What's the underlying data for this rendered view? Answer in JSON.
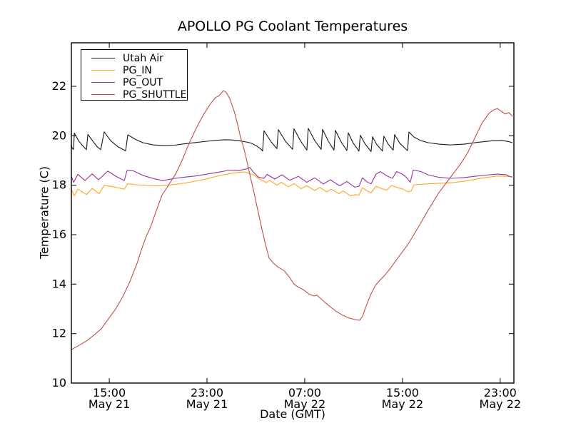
{
  "chart_data": {
    "type": "line",
    "title": "APOLLO PG Coolant Temperatures",
    "xlabel": "Date (GMT)",
    "ylabel": "Temperature (C)",
    "grid": false,
    "legend_position": "upper left",
    "x_unit": "hours since May 21 00:00 GMT",
    "xlim_hours": [
      11.9,
      48.12
    ],
    "ylim": [
      10,
      23.76
    ],
    "y_ticks": [
      10,
      12,
      14,
      16,
      18,
      20,
      22
    ],
    "x_ticks": [
      {
        "hours": 15,
        "time": "15:00",
        "date": "May 21"
      },
      {
        "hours": 23,
        "time": "23:00",
        "date": "May 21"
      },
      {
        "hours": 31,
        "time": "07:00",
        "date": "May 22"
      },
      {
        "hours": 39,
        "time": "15:00",
        "date": "May 22"
      },
      {
        "hours": 47,
        "time": "23:00",
        "date": "May 22"
      }
    ],
    "series": [
      {
        "name": "Utah Air",
        "color": "#1a1a1a",
        "points": [
          [
            11.9,
            19.63
          ],
          [
            11.96,
            19.5
          ],
          [
            12.08,
            19.45
          ],
          [
            12.14,
            20.11
          ],
          [
            12.49,
            19.8
          ],
          [
            12.78,
            19.62
          ],
          [
            13.13,
            19.44
          ],
          [
            13.25,
            20.06
          ],
          [
            13.66,
            19.78
          ],
          [
            14.01,
            19.56
          ],
          [
            14.3,
            19.44
          ],
          [
            14.59,
            20.16
          ],
          [
            15.12,
            19.8
          ],
          [
            15.7,
            19.56
          ],
          [
            16.11,
            19.45
          ],
          [
            16.34,
            19.39
          ],
          [
            16.52,
            20.04
          ],
          [
            17.16,
            19.85
          ],
          [
            17.74,
            19.72
          ],
          [
            18.62,
            19.63
          ],
          [
            19.5,
            19.6
          ],
          [
            20.37,
            19.62
          ],
          [
            21.25,
            19.68
          ],
          [
            22.12,
            19.73
          ],
          [
            23.0,
            19.78
          ],
          [
            23.88,
            19.82
          ],
          [
            24.46,
            19.84
          ],
          [
            25.04,
            19.83
          ],
          [
            25.63,
            19.8
          ],
          [
            26.21,
            19.75
          ],
          [
            26.62,
            19.7
          ],
          [
            27.09,
            19.58
          ],
          [
            27.44,
            19.45
          ],
          [
            27.55,
            19.38
          ],
          [
            27.67,
            20.2
          ],
          [
            28.26,
            19.75
          ],
          [
            28.72,
            19.48
          ],
          [
            28.84,
            20.25
          ],
          [
            29.42,
            19.78
          ],
          [
            30.01,
            19.45
          ],
          [
            30.12,
            20.28
          ],
          [
            30.65,
            19.8
          ],
          [
            31.17,
            19.42
          ],
          [
            31.29,
            20.3
          ],
          [
            31.82,
            19.8
          ],
          [
            32.34,
            19.45
          ],
          [
            32.46,
            20.26
          ],
          [
            32.93,
            19.78
          ],
          [
            33.39,
            19.42
          ],
          [
            33.51,
            20.22
          ],
          [
            33.98,
            19.75
          ],
          [
            34.45,
            19.4
          ],
          [
            34.56,
            20.12
          ],
          [
            34.97,
            19.7
          ],
          [
            35.44,
            19.38
          ],
          [
            35.55,
            20.02
          ],
          [
            35.96,
            19.66
          ],
          [
            36.43,
            19.36
          ],
          [
            36.55,
            19.96
          ],
          [
            36.9,
            19.64
          ],
          [
            37.36,
            19.38
          ],
          [
            37.48,
            19.98
          ],
          [
            37.83,
            19.66
          ],
          [
            38.24,
            19.42
          ],
          [
            38.36,
            20.05
          ],
          [
            38.77,
            19.7
          ],
          [
            39.41,
            19.4
          ],
          [
            39.53,
            20.15
          ],
          [
            39.94,
            19.95
          ],
          [
            40.52,
            19.8
          ],
          [
            41.11,
            19.72
          ],
          [
            41.98,
            19.66
          ],
          [
            42.86,
            19.63
          ],
          [
            44.03,
            19.66
          ],
          [
            45.2,
            19.74
          ],
          [
            46.36,
            19.8
          ],
          [
            47.12,
            19.81
          ],
          [
            47.65,
            19.77
          ],
          [
            48.0,
            19.72
          ]
        ]
      },
      {
        "name": "PG_IN",
        "color": "#FFA620",
        "points": [
          [
            11.9,
            17.84
          ],
          [
            12.14,
            17.57
          ],
          [
            12.43,
            17.84
          ],
          [
            13.13,
            17.62
          ],
          [
            13.6,
            17.87
          ],
          [
            14.18,
            17.66
          ],
          [
            14.59,
            18.0
          ],
          [
            15.41,
            17.93
          ],
          [
            16.23,
            17.84
          ],
          [
            16.52,
            18.06
          ],
          [
            17.16,
            18.02
          ],
          [
            18.04,
            17.99
          ],
          [
            18.91,
            17.98
          ],
          [
            19.79,
            18.0
          ],
          [
            20.66,
            18.05
          ],
          [
            21.54,
            18.12
          ],
          [
            22.42,
            18.2
          ],
          [
            23.29,
            18.3
          ],
          [
            24.17,
            18.41
          ],
          [
            24.87,
            18.47
          ],
          [
            25.63,
            18.52
          ],
          [
            26.09,
            18.54
          ],
          [
            26.8,
            18.42
          ],
          [
            27.2,
            18.28
          ],
          [
            27.67,
            18.16
          ],
          [
            27.85,
            18.1
          ],
          [
            28.14,
            18.2
          ],
          [
            28.72,
            18.0
          ],
          [
            29.07,
            18.12
          ],
          [
            29.66,
            17.94
          ],
          [
            30.12,
            18.06
          ],
          [
            30.71,
            17.86
          ],
          [
            31.17,
            17.98
          ],
          [
            31.82,
            17.79
          ],
          [
            32.23,
            17.91
          ],
          [
            32.81,
            17.73
          ],
          [
            33.16,
            17.84
          ],
          [
            33.8,
            17.66
          ],
          [
            34.15,
            17.77
          ],
          [
            34.74,
            17.57
          ],
          [
            35.15,
            17.62
          ],
          [
            35.44,
            17.6
          ],
          [
            35.73,
            17.9
          ],
          [
            36.14,
            17.76
          ],
          [
            36.43,
            17.7
          ],
          [
            36.84,
            17.96
          ],
          [
            37.31,
            17.86
          ],
          [
            37.71,
            17.8
          ],
          [
            38.12,
            18.0
          ],
          [
            38.58,
            17.9
          ],
          [
            39.05,
            17.84
          ],
          [
            39.41,
            17.74
          ],
          [
            39.7,
            17.76
          ],
          [
            39.94,
            18.02
          ],
          [
            40.64,
            18.04
          ],
          [
            41.69,
            18.07
          ],
          [
            43.03,
            18.1
          ],
          [
            44.03,
            18.16
          ],
          [
            44.91,
            18.24
          ],
          [
            45.78,
            18.31
          ],
          [
            46.77,
            18.37
          ],
          [
            47.53,
            18.36
          ],
          [
            48.0,
            18.34
          ]
        ]
      },
      {
        "name": "PG_OUT",
        "color": "#993399",
        "points": [
          [
            11.9,
            18.36
          ],
          [
            12.08,
            18.12
          ],
          [
            12.43,
            18.44
          ],
          [
            13.01,
            18.19
          ],
          [
            13.6,
            18.46
          ],
          [
            14.12,
            18.22
          ],
          [
            14.88,
            18.57
          ],
          [
            15.58,
            18.35
          ],
          [
            16.23,
            18.19
          ],
          [
            16.46,
            18.6
          ],
          [
            16.99,
            18.58
          ],
          [
            17.74,
            18.4
          ],
          [
            18.62,
            18.27
          ],
          [
            19.38,
            18.19
          ],
          [
            20.37,
            18.28
          ],
          [
            21.25,
            18.33
          ],
          [
            22.01,
            18.37
          ],
          [
            23.0,
            18.45
          ],
          [
            23.88,
            18.52
          ],
          [
            24.87,
            18.61
          ],
          [
            25.63,
            18.6
          ],
          [
            26.21,
            18.66
          ],
          [
            26.5,
            18.72
          ],
          [
            26.85,
            18.5
          ],
          [
            27.2,
            18.33
          ],
          [
            27.67,
            18.28
          ],
          [
            27.91,
            18.44
          ],
          [
            28.55,
            18.25
          ],
          [
            29.13,
            18.42
          ],
          [
            29.77,
            18.2
          ],
          [
            30.47,
            18.36
          ],
          [
            31.17,
            18.12
          ],
          [
            31.82,
            18.3
          ],
          [
            32.52,
            18.05
          ],
          [
            33.1,
            18.22
          ],
          [
            33.86,
            17.98
          ],
          [
            34.45,
            18.15
          ],
          [
            35.09,
            17.92
          ],
          [
            35.44,
            17.96
          ],
          [
            35.73,
            18.3
          ],
          [
            36.14,
            18.12
          ],
          [
            36.43,
            18.06
          ],
          [
            36.84,
            18.45
          ],
          [
            37.19,
            18.55
          ],
          [
            37.71,
            18.38
          ],
          [
            38.18,
            18.28
          ],
          [
            38.53,
            18.55
          ],
          [
            39.0,
            18.45
          ],
          [
            39.35,
            18.3
          ],
          [
            39.64,
            18.12
          ],
          [
            39.88,
            18.62
          ],
          [
            40.52,
            18.55
          ],
          [
            41.11,
            18.42
          ],
          [
            41.98,
            18.32
          ],
          [
            43.03,
            18.28
          ],
          [
            44.03,
            18.31
          ],
          [
            44.91,
            18.36
          ],
          [
            45.78,
            18.41
          ],
          [
            46.77,
            18.45
          ],
          [
            47.53,
            18.42
          ],
          [
            47.77,
            18.35
          ],
          [
            48.0,
            18.33
          ]
        ]
      },
      {
        "name": "PG_SHUTTLE",
        "color": "#C05048",
        "points": [
          [
            11.9,
            11.35
          ],
          [
            12.61,
            11.55
          ],
          [
            13.19,
            11.72
          ],
          [
            13.77,
            11.95
          ],
          [
            14.36,
            12.2
          ],
          [
            14.94,
            12.6
          ],
          [
            15.53,
            13.0
          ],
          [
            16.11,
            13.5
          ],
          [
            16.69,
            14.1
          ],
          [
            17.28,
            14.85
          ],
          [
            17.74,
            15.55
          ],
          [
            18.04,
            15.95
          ],
          [
            18.33,
            16.25
          ],
          [
            18.8,
            16.9
          ],
          [
            19.32,
            17.6
          ],
          [
            19.91,
            18.05
          ],
          [
            20.43,
            18.45
          ],
          [
            20.96,
            19.0
          ],
          [
            21.54,
            19.7
          ],
          [
            22.12,
            20.3
          ],
          [
            22.71,
            20.85
          ],
          [
            23.29,
            21.3
          ],
          [
            23.7,
            21.55
          ],
          [
            23.99,
            21.62
          ],
          [
            24.17,
            21.72
          ],
          [
            24.34,
            21.83
          ],
          [
            24.58,
            21.75
          ],
          [
            24.87,
            21.5
          ],
          [
            25.22,
            21.0
          ],
          [
            25.51,
            20.45
          ],
          [
            25.74,
            19.95
          ],
          [
            25.98,
            19.55
          ],
          [
            26.21,
            19.1
          ],
          [
            26.5,
            18.45
          ],
          [
            26.8,
            17.8
          ],
          [
            27.09,
            17.15
          ],
          [
            27.44,
            16.35
          ],
          [
            27.79,
            15.6
          ],
          [
            28.08,
            15.05
          ],
          [
            28.43,
            14.85
          ],
          [
            28.84,
            14.68
          ],
          [
            29.31,
            14.55
          ],
          [
            29.72,
            14.3
          ],
          [
            30.12,
            14.0
          ],
          [
            30.47,
            13.88
          ],
          [
            30.88,
            13.78
          ],
          [
            31.35,
            13.6
          ],
          [
            31.76,
            13.52
          ],
          [
            31.99,
            13.56
          ],
          [
            32.23,
            13.45
          ],
          [
            32.64,
            13.27
          ],
          [
            33.1,
            13.08
          ],
          [
            33.57,
            12.9
          ],
          [
            34.09,
            12.75
          ],
          [
            34.62,
            12.63
          ],
          [
            35.09,
            12.57
          ],
          [
            35.5,
            12.54
          ],
          [
            35.73,
            12.7
          ],
          [
            36.02,
            13.1
          ],
          [
            36.37,
            13.55
          ],
          [
            36.78,
            13.95
          ],
          [
            37.19,
            14.18
          ],
          [
            37.48,
            14.32
          ],
          [
            37.95,
            14.6
          ],
          [
            38.53,
            15.0
          ],
          [
            39.41,
            15.58
          ],
          [
            40.29,
            16.3
          ],
          [
            41.11,
            17.0
          ],
          [
            41.98,
            17.7
          ],
          [
            42.86,
            18.28
          ],
          [
            43.74,
            18.85
          ],
          [
            44.32,
            19.3
          ],
          [
            44.91,
            19.9
          ],
          [
            45.49,
            20.5
          ],
          [
            46.07,
            20.9
          ],
          [
            46.48,
            21.05
          ],
          [
            46.77,
            21.1
          ],
          [
            47.12,
            20.98
          ],
          [
            47.41,
            20.88
          ],
          [
            47.71,
            20.94
          ],
          [
            48.0,
            20.78
          ]
        ]
      }
    ]
  }
}
